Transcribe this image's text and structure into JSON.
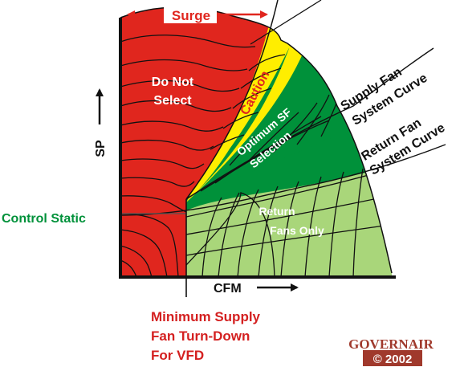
{
  "labels": {
    "surge": "Surge",
    "do_not_select_line1": "Do Not",
    "do_not_select_line2": "Select",
    "caution": "Caution",
    "optimum_line1": "Optimum SF",
    "optimum_line2": "Selection",
    "return_only_line1": "Return",
    "return_only_line2": "Fans Only",
    "supply_curve_line1": "Supply Fan",
    "supply_curve_line2": "System Curve",
    "return_curve_line1": "Return Fan",
    "return_curve_line2": "System Curve",
    "y_axis": "SP",
    "x_axis": "CFM",
    "control_static": "Control Static",
    "min_line1": "Minimum Supply",
    "min_line2": "Fan Turn-Down",
    "min_line3": "For VFD"
  },
  "logo": {
    "name": "GOVERNAIR",
    "copyright": "© 2002"
  },
  "colors": {
    "red_zone": "#e0261e",
    "yellow_zone": "#ffee00",
    "green_zone": "#00913a",
    "light_green_zone": "#a9d67a",
    "label_red": "#d42020",
    "label_green": "#00913a",
    "surge_red": "#e0261e"
  }
}
